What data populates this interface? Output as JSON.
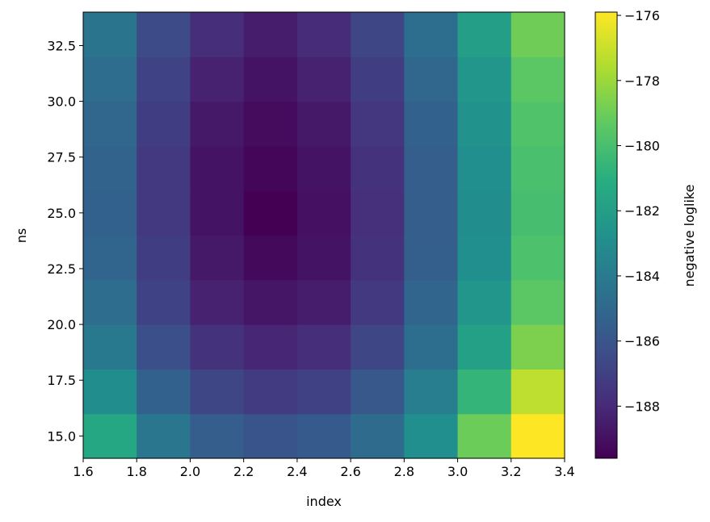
{
  "chart_data": {
    "type": "heatmap",
    "title": "",
    "xlabel": "index",
    "ylabel": "ns",
    "colorbar_label": "negative loglike",
    "colormap": "viridis",
    "x_edges": [
      1.6,
      1.8,
      2.0,
      2.2,
      2.4,
      2.6,
      2.8,
      3.0,
      3.2,
      3.4
    ],
    "y_edges": [
      14.0,
      16.0,
      18.0,
      20.0,
      22.0,
      24.0,
      26.0,
      28.0,
      30.0,
      32.0,
      34.0
    ],
    "xlim": [
      1.6,
      3.4
    ],
    "ylim": [
      14.0,
      34.0
    ],
    "x_ticks": [
      {
        "value": 1.6,
        "label": "1.6"
      },
      {
        "value": 1.8,
        "label": "1.8"
      },
      {
        "value": 2.0,
        "label": "2.0"
      },
      {
        "value": 2.2,
        "label": "2.2"
      },
      {
        "value": 2.4,
        "label": "2.4"
      },
      {
        "value": 2.6,
        "label": "2.6"
      },
      {
        "value": 2.8,
        "label": "2.8"
      },
      {
        "value": 3.0,
        "label": "3.0"
      },
      {
        "value": 3.2,
        "label": "3.2"
      },
      {
        "value": 3.4,
        "label": "3.4"
      }
    ],
    "y_ticks": [
      {
        "value": 15.0,
        "label": "15.0"
      },
      {
        "value": 17.5,
        "label": "17.5"
      },
      {
        "value": 20.0,
        "label": "20.0"
      },
      {
        "value": 22.5,
        "label": "22.5"
      },
      {
        "value": 25.0,
        "label": "25.0"
      },
      {
        "value": 27.5,
        "label": "27.5"
      },
      {
        "value": 30.0,
        "label": "30.0"
      },
      {
        "value": 32.5,
        "label": "32.5"
      }
    ],
    "colorbar_range": [
      -189.6,
      -175.9
    ],
    "colorbar_ticks": [
      {
        "value": -188,
        "label": "−188"
      },
      {
        "value": -186,
        "label": "−186"
      },
      {
        "value": -184,
        "label": "−184"
      },
      {
        "value": -182,
        "label": "−182"
      },
      {
        "value": -180,
        "label": "−180"
      },
      {
        "value": -178,
        "label": "−178"
      },
      {
        "value": -176,
        "label": "−176"
      }
    ],
    "values": [
      [
        -181.4,
        -184.2,
        -185.5,
        -186.0,
        -185.7,
        -184.8,
        -182.8,
        -179.0,
        -175.9
      ],
      [
        -182.9,
        -185.3,
        -186.7,
        -187.2,
        -186.9,
        -185.8,
        -183.8,
        -180.6,
        -177.2
      ],
      [
        -184.0,
        -186.2,
        -187.6,
        -188.1,
        -187.8,
        -186.7,
        -184.6,
        -181.8,
        -178.6
      ],
      [
        -184.7,
        -186.8,
        -188.3,
        -188.8,
        -188.5,
        -187.3,
        -185.1,
        -182.4,
        -179.4
      ],
      [
        -185.1,
        -187.1,
        -188.7,
        -189.3,
        -188.9,
        -187.6,
        -185.4,
        -182.8,
        -179.8
      ],
      [
        -185.3,
        -187.3,
        -188.9,
        -189.6,
        -189.0,
        -187.7,
        -185.5,
        -182.9,
        -180.0
      ],
      [
        -185.2,
        -187.3,
        -188.9,
        -189.4,
        -188.9,
        -187.6,
        -185.5,
        -182.8,
        -179.9
      ],
      [
        -185.0,
        -187.1,
        -188.7,
        -189.2,
        -188.7,
        -187.4,
        -185.3,
        -182.6,
        -179.7
      ],
      [
        -184.7,
        -186.8,
        -188.3,
        -188.9,
        -188.3,
        -187.1,
        -185.0,
        -182.4,
        -179.4
      ],
      [
        -184.3,
        -186.4,
        -187.8,
        -188.5,
        -187.9,
        -186.7,
        -184.6,
        -181.9,
        -178.9
      ]
    ]
  }
}
